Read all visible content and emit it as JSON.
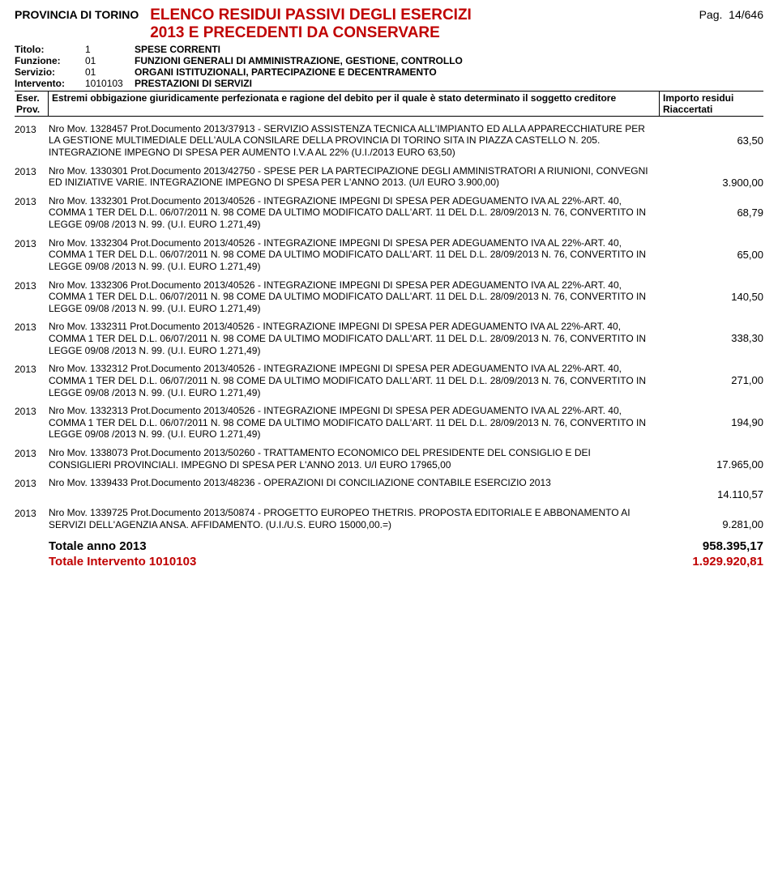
{
  "header": {
    "provincia": "PROVINCIA DI TORINO",
    "title_line1": "ELENCO RESIDUI PASSIVI DEGLI ESERCIZI",
    "title_line2": "2013  E PRECEDENTI DA CONSERVARE",
    "pag_label": "Pag.",
    "pag_value": "14/646"
  },
  "meta": {
    "titolo_label": "Titolo:",
    "titolo_code": "1",
    "titolo_desc": "SPESE CORRENTI",
    "funzione_label": "Funzione:",
    "funzione_code": "01",
    "funzione_desc": "FUNZIONI GENERALI DI AMMINISTRAZIONE, GESTIONE, CONTROLLO",
    "servizio_label": "Servizio:",
    "servizio_code": "01",
    "servizio_desc": "ORGANI ISTITUZIONALI, PARTECIPAZIONE E DECENTRAMENTO",
    "intervento_label": "Intervento:",
    "intervento_code": "1010103",
    "intervento_desc": "PRESTAZIONI DI SERVIZI"
  },
  "thead": {
    "eser": "Eser. Prov.",
    "desc": "Estremi obbigazione giuridicamente perfezionata e ragione del debito per il quale è stato determinato il soggetto creditore",
    "imp": "Importo residui Riaccertati"
  },
  "entries": [
    {
      "year": "2013",
      "text": "Nro Mov.  1328457  Prot.Documento  2013/37913   -  SERVIZIO ASSISTENZA TECNICA ALL'IMPIANTO ED ALLA APPARECCHIATURE  PER LA GESTIONE MULTIMEDIALE DELL'AULA CONSILARE DELLA PROVINCIA DI TORINO SITA IN PIAZZA CASTELLO N. 205. INTEGRAZIONE IMPEGNO DI SPESA PER AUMENTO I.V.A AL 22% (U.I./2013 EURO 63,50)",
      "amount": "63,50"
    },
    {
      "year": "2013",
      "text": "Nro Mov.  1330301  Prot.Documento  2013/42750   -  SPESE PER LA PARTECIPAZIONE DEGLI AMMINISTRATORI A RIUNIONI,  CONVEGNI ED INIZIATIVE VARIE. INTEGRAZIONE IMPEGNO DI SPESA PER L'ANNO 2013.  (U/I EURO 3.900,00)",
      "amount": "3.900,00"
    },
    {
      "year": "2013",
      "text": "Nro Mov.  1332301  Prot.Documento  2013/40526   -  INTEGRAZIONE IMPEGNI DI SPESA PER ADEGUAMENTO IVA AL 22%-ART. 40, COMMA 1 TER DEL D.L. 06/07/2011 N. 98 COME DA ULTIMO MODIFICATO DALL'ART. 11 DEL D.L. 28/09/2013 N. 76, CONVERTITO IN LEGGE 09/08 /2013 N. 99. (U.I. EURO 1.271,49)",
      "amount": "68,79"
    },
    {
      "year": "2013",
      "text": "Nro Mov.  1332304  Prot.Documento  2013/40526   -  INTEGRAZIONE IMPEGNI DI SPESA PER ADEGUAMENTO IVA AL 22%-ART. 40, COMMA 1 TER DEL D.L. 06/07/2011 N. 98 COME DA ULTIMO MODIFICATO DALL'ART. 11 DEL D.L. 28/09/2013 N. 76, CONVERTITO IN LEGGE 09/08 /2013 N. 99. (U.I. EURO 1.271,49)",
      "amount": "65,00"
    },
    {
      "year": "2013",
      "text": "Nro Mov.  1332306  Prot.Documento  2013/40526   -  INTEGRAZIONE IMPEGNI DI SPESA PER ADEGUAMENTO IVA AL 22%-ART. 40, COMMA 1 TER DEL D.L. 06/07/2011 N. 98 COME DA ULTIMO MODIFICATO DALL'ART. 11 DEL D.L. 28/09/2013 N. 76, CONVERTITO IN LEGGE 09/08 /2013 N. 99. (U.I. EURO 1.271,49)",
      "amount": "140,50"
    },
    {
      "year": "2013",
      "text": "Nro Mov.  1332311  Prot.Documento  2013/40526   -  INTEGRAZIONE IMPEGNI DI SPESA PER ADEGUAMENTO IVA AL 22%-ART. 40, COMMA 1 TER DEL D.L. 06/07/2011 N. 98 COME DA ULTIMO MODIFICATO DALL'ART. 11 DEL D.L. 28/09/2013 N. 76, CONVERTITO IN LEGGE 09/08 /2013 N. 99. (U.I. EURO 1.271,49)",
      "amount": "338,30"
    },
    {
      "year": "2013",
      "text": "Nro Mov.  1332312  Prot.Documento  2013/40526   -  INTEGRAZIONE IMPEGNI DI SPESA PER ADEGUAMENTO IVA AL 22%-ART. 40, COMMA 1 TER DEL D.L. 06/07/2011 N. 98 COME DA ULTIMO MODIFICATO DALL'ART. 11 DEL D.L. 28/09/2013 N. 76, CONVERTITO IN LEGGE 09/08 /2013 N. 99. (U.I. EURO 1.271,49)",
      "amount": "271,00"
    },
    {
      "year": "2013",
      "text": "Nro Mov.  1332313  Prot.Documento  2013/40526   -  INTEGRAZIONE IMPEGNI DI SPESA PER ADEGUAMENTO IVA AL 22%-ART. 40, COMMA 1 TER DEL D.L. 06/07/2011 N. 98 COME DA ULTIMO MODIFICATO DALL'ART. 11 DEL D.L. 28/09/2013 N. 76, CONVERTITO IN LEGGE 09/08 /2013 N. 99. (U.I. EURO 1.271,49)",
      "amount": "194,90"
    },
    {
      "year": "2013",
      "text": "Nro Mov.  1338073  Prot.Documento  2013/50260   -  TRATTAMENTO ECONOMICO DEL PRESIDENTE DEL CONSIGLIO E DEI CONSIGLIERI PROVINCIALI. IMPEGNO DI SPESA PER L'ANNO 2013. U/I EURO 17965,00",
      "amount": "17.965,00"
    },
    {
      "year": "2013",
      "text": "Nro Mov.  1339433  Prot.Documento  2013/48236   -  OPERAZIONI DI CONCILIAZIONE CONTABILE ESERCIZIO 2013",
      "amount": "14.110,57"
    },
    {
      "year": "2013",
      "text": "Nro Mov.  1339725  Prot.Documento  2013/50874   -  PROGETTO EUROPEO THETRIS. PROPOSTA EDITORIALE E ABBONAMENTO AI SERVIZI DELL'AGENZIA ANSA. AFFIDAMENTO.   (U.I./U.S. EURO 15000,00.=)",
      "amount": "9.281,00"
    }
  ],
  "totals": {
    "anno_label": "Totale anno  2013",
    "anno_value": "958.395,17",
    "intervento_label": "Totale Intervento  1010103",
    "intervento_value": "1.929.920,81"
  }
}
